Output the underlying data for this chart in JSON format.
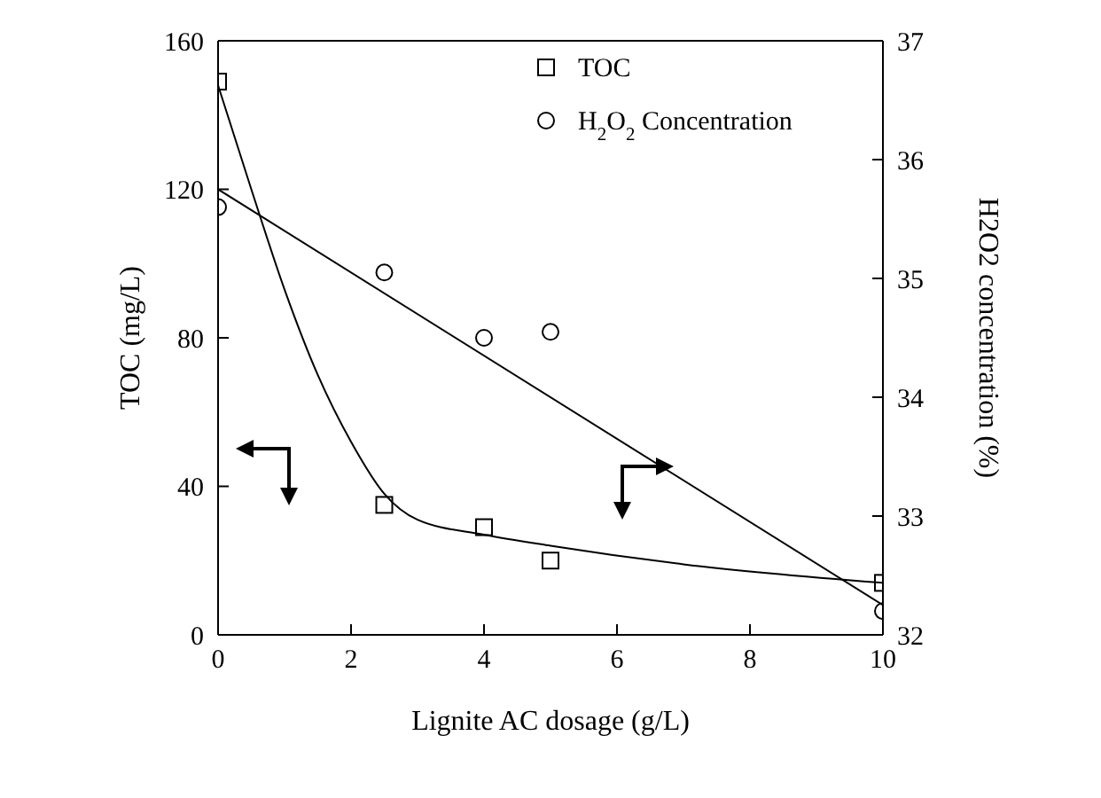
{
  "chart_data": {
    "type": "scatter",
    "xlabel": "Lignite AC dosage (g/L)",
    "ylabel": "TOC (mg/L)",
    "y2label": "H2O2 concentration (%)",
    "xlim": [
      0,
      10
    ],
    "xticks": [
      0,
      2,
      4,
      6,
      8,
      10
    ],
    "ylim": [
      0,
      160
    ],
    "yticks": [
      0,
      40,
      80,
      120,
      160
    ],
    "y2lim": [
      32,
      37
    ],
    "y2ticks": [
      32,
      33,
      34,
      35,
      36,
      37
    ],
    "legend": "top",
    "series": [
      {
        "name": "TOC",
        "marker": "square",
        "color": "#000000",
        "x": [
          0,
          2.5,
          4,
          5,
          10
        ],
        "values": [
          149,
          35,
          29,
          20,
          14
        ]
      },
      {
        "name": "H$_{2}$O$_{2}$ Concentration",
        "marker": "circle",
        "axis": "y2",
        "color": "#000000",
        "x": [
          0,
          2.5,
          4,
          5,
          10
        ],
        "values": [
          35.6,
          35.05,
          34.5,
          34.55,
          32.2
        ]
      },
      {
        "type": "line",
        "marker": "none",
        "color": "#000000",
        "x": [
          0,
          0.5,
          1,
          1.5,
          2,
          2.5,
          3,
          4,
          5,
          7,
          10
        ],
        "values": [
          148,
          120,
          93,
          70,
          52,
          38,
          31,
          27,
          24,
          19,
          14
        ]
      },
      {
        "type": "line",
        "marker": "none",
        "axis": "y2",
        "color": "#000000",
        "x": [
          0,
          10
        ],
        "values": [
          35.75,
          32.25
        ]
      }
    ]
  }
}
